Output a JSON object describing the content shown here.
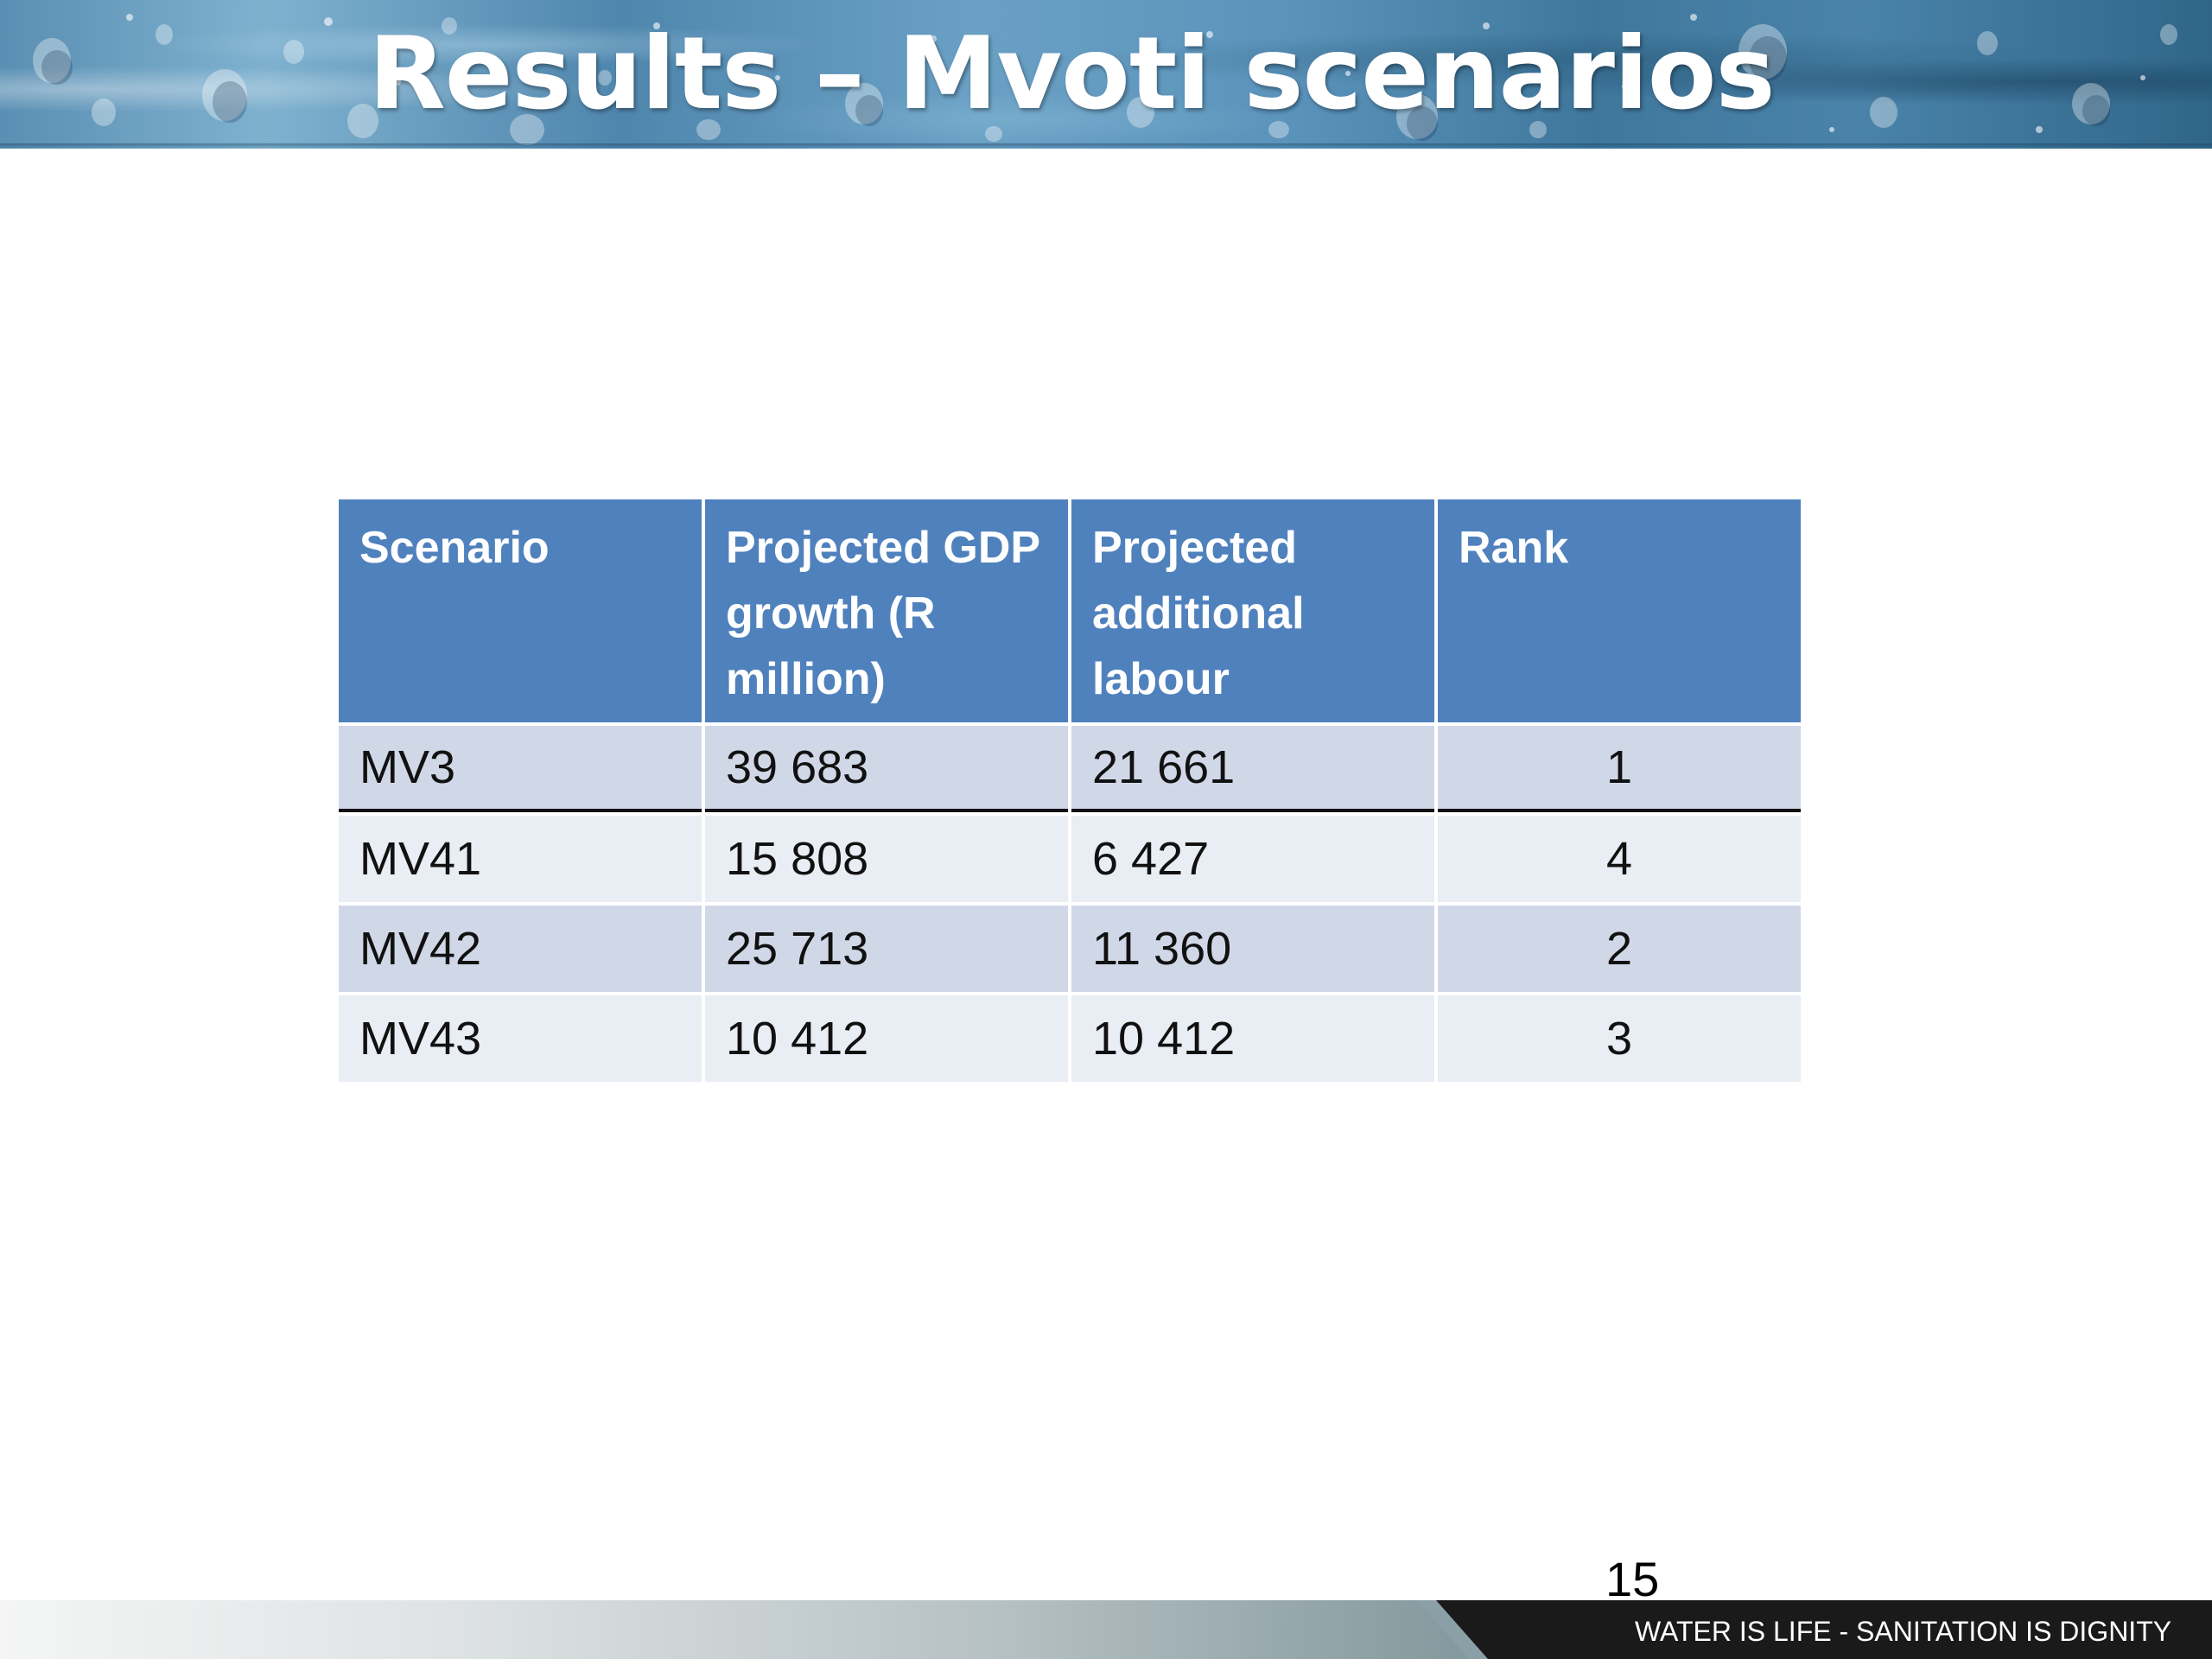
{
  "slide": {
    "title": "Results – Mvoti scenarios",
    "page_number": "15",
    "footer_slogan": "WATER IS LIFE - SANITATION IS DIGNITY",
    "colors": {
      "header_blue": "#4f81bd",
      "row_odd": "#d0d8e8",
      "row_even": "#e9edf4",
      "footer_dark": "#1a1a1a"
    }
  },
  "table": {
    "headers": [
      "Scenario",
      "Projected GDP growth (R million)",
      "Projected additional labour",
      "Rank"
    ],
    "rows": [
      [
        "MV3",
        "39 683",
        "21 661",
        "1"
      ],
      [
        "MV41",
        "15 808",
        "6 427",
        "4"
      ],
      [
        "MV42",
        "25 713",
        "11 360",
        "2"
      ],
      [
        "MV43",
        "10 412",
        "10 412",
        "3"
      ]
    ]
  }
}
